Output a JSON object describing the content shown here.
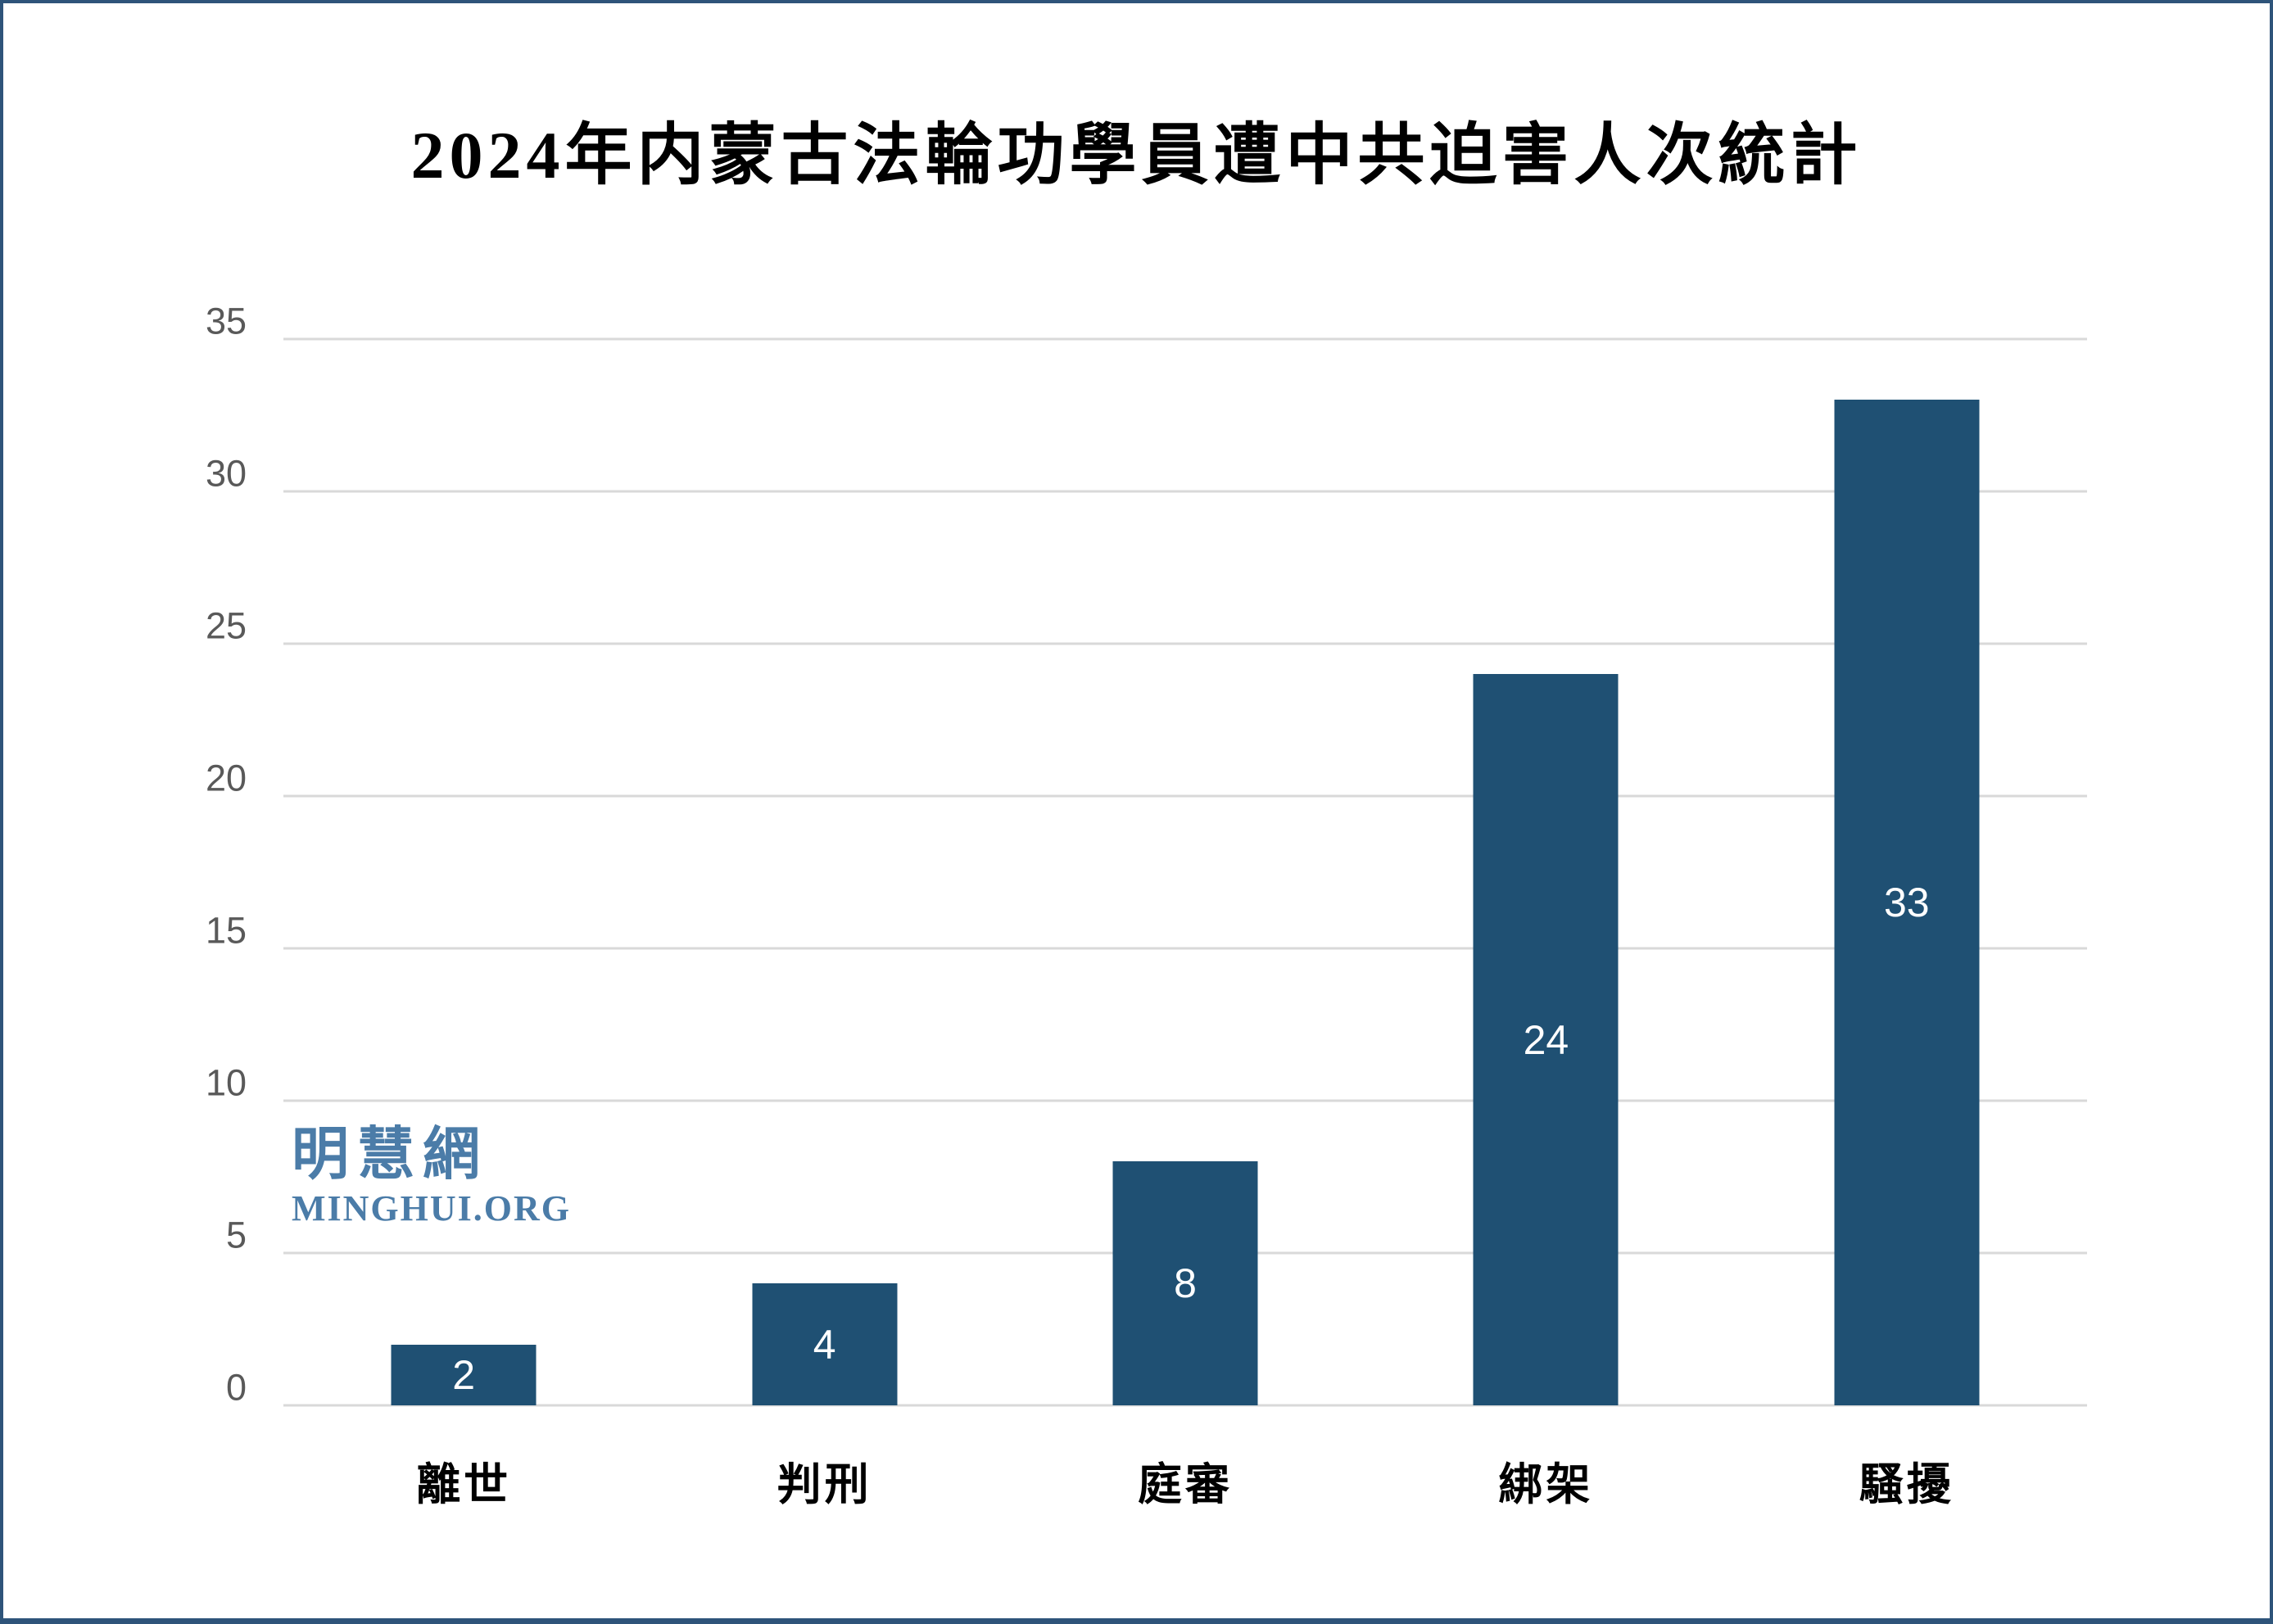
{
  "chart_data": {
    "type": "bar",
    "title": "2024年内蒙古法輪功學員遭中共迫害人次統計",
    "categories": [
      "離世",
      "判刑",
      "庭審",
      "綁架",
      "騷擾"
    ],
    "values": [
      2,
      4,
      8,
      24,
      33
    ],
    "xlabel": "",
    "ylabel": "",
    "ylim": [
      0,
      35
    ],
    "yticks": [
      0,
      5,
      10,
      15,
      20,
      25,
      30,
      35
    ],
    "grid": true,
    "legend": "none",
    "data_labels": "inside-center-white",
    "colors": {
      "bar": "#1f5073",
      "bar_value_label": "#ffffff",
      "gridline": "#d9d9d9",
      "axis_tick_label": "#595959",
      "title_text": "#000000",
      "category_label": "#000000",
      "frame_border": "#2e547a"
    }
  },
  "watermark": {
    "cn": "明慧網",
    "en": "MINGHUI.ORG",
    "color": "#4b7ca8"
  }
}
